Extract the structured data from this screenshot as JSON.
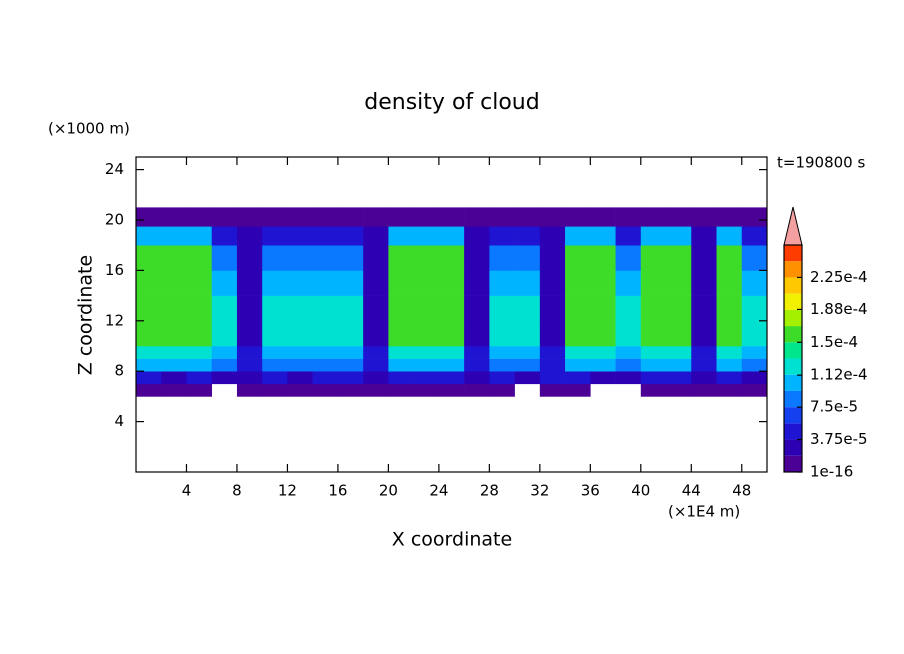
{
  "chart_data": {
    "type": "contour",
    "title": "density of cloud",
    "x_label": "X coordinate",
    "y_label": "Z coordinate",
    "x_unit": "(×1E4 m)",
    "y_unit": "(×1000 m)",
    "time_label": "t=190800 s",
    "xlim": [
      0,
      50
    ],
    "ylim": [
      0,
      25
    ],
    "xticks": [
      4,
      8,
      12,
      16,
      20,
      24,
      28,
      32,
      36,
      40,
      44,
      48
    ],
    "yticks": [
      4,
      8,
      12,
      16,
      20,
      24
    ],
    "x_edges": [
      0,
      2,
      4,
      6,
      8,
      10,
      12,
      14,
      16,
      18,
      20,
      22,
      24,
      26,
      28,
      30,
      32,
      34,
      36,
      38,
      40,
      42,
      44,
      46,
      48,
      50
    ],
    "y_edges": [
      6,
      7,
      8,
      9,
      10,
      12,
      14,
      16,
      18,
      19.5,
      21
    ],
    "values": [
      [
        1e-05,
        1e-05,
        1e-05,
        null,
        1e-05,
        1e-05,
        1e-05,
        1e-05,
        1e-05,
        1e-05,
        1e-05,
        1e-05,
        1e-05,
        1e-05,
        1e-05,
        null,
        1e-05,
        1e-05,
        null,
        null,
        1e-05,
        1e-05,
        1e-05,
        1e-05,
        1e-05
      ],
      [
        5e-05,
        3e-05,
        5e-05,
        3e-05,
        3e-05,
        5e-05,
        3e-05,
        5e-05,
        5e-05,
        3e-05,
        5e-05,
        5e-05,
        5e-05,
        3e-05,
        5e-05,
        3e-05,
        5e-05,
        5e-05,
        3e-05,
        3e-05,
        5e-05,
        5e-05,
        3e-05,
        5e-05,
        3e-05
      ],
      [
        0.00011,
        0.00011,
        0.00011,
        8e-05,
        5e-05,
        8e-05,
        8e-05,
        8e-05,
        8e-05,
        5e-05,
        0.00011,
        0.00011,
        0.00011,
        5e-05,
        8e-05,
        8e-05,
        5e-05,
        0.00011,
        0.00011,
        8e-05,
        0.00011,
        0.00011,
        5e-05,
        0.00011,
        8e-05
      ],
      [
        0.00013,
        0.00013,
        0.00013,
        0.00011,
        5e-05,
        0.00011,
        0.00011,
        0.00011,
        0.00011,
        5e-05,
        0.00013,
        0.00013,
        0.00013,
        5e-05,
        0.00011,
        0.00011,
        5e-05,
        0.00013,
        0.00013,
        0.00011,
        0.00013,
        0.00013,
        5e-05,
        0.00013,
        0.00011
      ],
      [
        0.00015,
        0.00015,
        0.00015,
        0.00013,
        3e-05,
        0.00013,
        0.00013,
        0.00013,
        0.00013,
        3e-05,
        0.00015,
        0.00015,
        0.00015,
        3e-05,
        0.00013,
        0.00013,
        3e-05,
        0.00015,
        0.00015,
        0.00013,
        0.00015,
        0.00015,
        3e-05,
        0.00015,
        0.00013
      ],
      [
        0.00016,
        0.00016,
        0.00016,
        0.00013,
        3e-05,
        0.00013,
        0.00013,
        0.00013,
        0.00013,
        3e-05,
        0.00016,
        0.00016,
        0.00016,
        3e-05,
        0.00013,
        0.00013,
        3e-05,
        0.00016,
        0.00016,
        0.00013,
        0.00016,
        0.00016,
        3e-05,
        0.00016,
        0.00013
      ],
      [
        0.00016,
        0.00016,
        0.00016,
        0.00011,
        3e-05,
        0.00011,
        0.00011,
        0.00011,
        0.00011,
        3e-05,
        0.00016,
        0.00016,
        0.00016,
        3e-05,
        0.00011,
        0.00011,
        3e-05,
        0.00016,
        0.00016,
        0.00011,
        0.00016,
        0.00016,
        3e-05,
        0.00016,
        0.00011
      ],
      [
        0.00015,
        0.00015,
        0.00015,
        8e-05,
        3e-05,
        8e-05,
        8e-05,
        8e-05,
        8e-05,
        3e-05,
        0.00015,
        0.00015,
        0.00015,
        3e-05,
        8e-05,
        8e-05,
        3e-05,
        0.00015,
        0.00015,
        8e-05,
        0.00015,
        0.00015,
        3e-05,
        0.00015,
        8e-05
      ],
      [
        0.00011,
        0.00011,
        0.00011,
        5e-05,
        3e-05,
        5e-05,
        5e-05,
        5e-05,
        5e-05,
        3e-05,
        0.00011,
        0.00011,
        0.00011,
        3e-05,
        5e-05,
        5e-05,
        3e-05,
        0.00011,
        0.00011,
        5e-05,
        0.00011,
        0.00011,
        3e-05,
        0.00011,
        5e-05
      ],
      [
        1e-05,
        1e-05,
        1e-05,
        1e-05,
        1e-05,
        1e-05,
        1e-05,
        1e-05,
        1e-05,
        1e-05,
        1e-05,
        1e-05,
        1e-05,
        1e-05,
        1e-05,
        1e-05,
        1e-05,
        1e-05,
        1e-05,
        1e-05,
        1e-05,
        1e-05,
        1e-05,
        1e-05,
        1e-05
      ]
    ],
    "levels": [
      1e-16,
      1.875e-05,
      3.75e-05,
      5.625e-05,
      7.5e-05,
      9.375e-05,
      0.0001125,
      0.00013125,
      0.00015,
      0.00016875,
      0.0001875,
      0.00020625,
      0.000225,
      0.00024375,
      0.0002625
    ],
    "colors": [
      "#4b0096",
      "#2d00b4",
      "#1e14d2",
      "#1440f0",
      "#0a78ff",
      "#00b4ff",
      "#00e1d2",
      "#00e68c",
      "#3cdc28",
      "#a5f000",
      "#f0f000",
      "#ffc800",
      "#ff9100",
      "#ff3c00"
    ],
    "extend_color": "#f4a0a0",
    "colorbar_ticks": [
      {
        "value": 1e-16,
        "label": "1e-16"
      },
      {
        "value": 3.75e-05,
        "label": "3.75e-5"
      },
      {
        "value": 7.5e-05,
        "label": "7.5e-5"
      },
      {
        "value": 0.000112,
        "label": "1.12e-4"
      },
      {
        "value": 0.00015,
        "label": "1.5e-4"
      },
      {
        "value": 0.000188,
        "label": "1.88e-4"
      },
      {
        "value": 0.000225,
        "label": "2.25e-4"
      }
    ]
  }
}
